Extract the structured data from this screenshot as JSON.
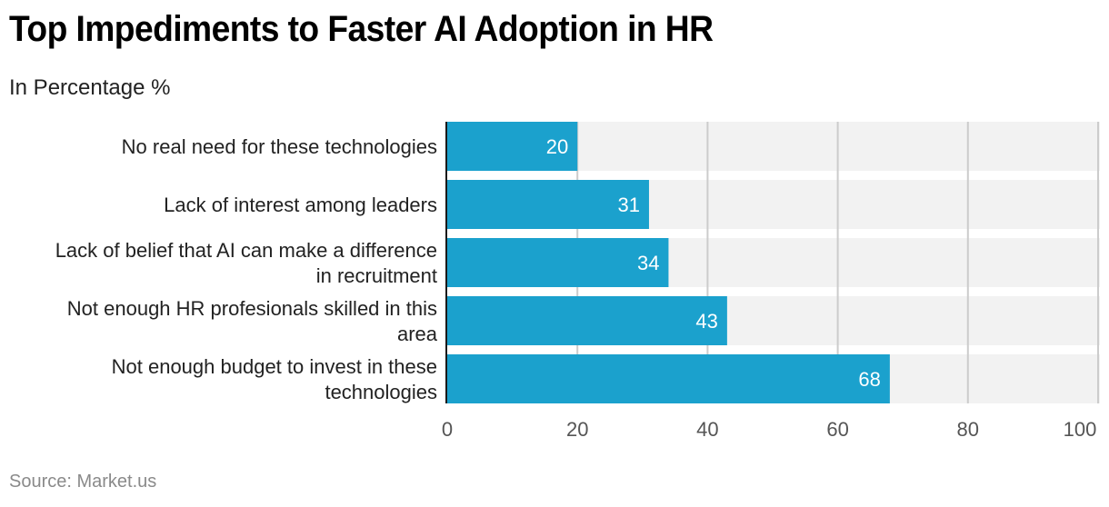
{
  "header": {
    "title": "Top Impediments to Faster AI Adoption in HR",
    "subtitle": "In Percentage %"
  },
  "footer": {
    "source": "Source: Market.us"
  },
  "colors": {
    "bar": "#1ba1cd",
    "band": "#f2f2f2",
    "grid": "#cccccc",
    "axis": "#1a1a1a"
  },
  "chart_data": {
    "type": "bar",
    "orientation": "horizontal",
    "title": "Top Impediments to Faster AI Adoption in HR",
    "subtitle": "In Percentage %",
    "xlabel": "",
    "ylabel": "",
    "categories": [
      [
        "No real need for these technologies"
      ],
      [
        "Lack of interest among leaders"
      ],
      [
        "Lack of belief that AI can make a difference",
        "in recruitment"
      ],
      [
        "Not enough HR profesionals skilled in this",
        "area"
      ],
      [
        "Not enough budget to invest in these",
        "technologies"
      ]
    ],
    "values": [
      20,
      31,
      34,
      43,
      68
    ],
    "xlim": [
      0,
      100
    ],
    "xticks": [
      0,
      20,
      40,
      60,
      80,
      100
    ],
    "grid": true,
    "data_labels": true,
    "legend": "none",
    "source": "Source: Market.us"
  }
}
